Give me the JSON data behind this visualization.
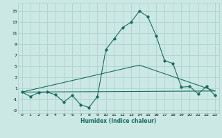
{
  "xlabel": "Humidex (Indice chaleur)",
  "ylabel": "",
  "bg_color": "#cce8e4",
  "line_color": "#1a6b60",
  "grid_color": "#aed4ce",
  "xlim": [
    -0.5,
    23.5
  ],
  "ylim": [
    -3.5,
    16.5
  ],
  "xticks": [
    0,
    1,
    2,
    3,
    4,
    5,
    6,
    7,
    8,
    9,
    10,
    11,
    12,
    13,
    14,
    15,
    16,
    17,
    18,
    19,
    20,
    21,
    22,
    23
  ],
  "yticks": [
    -3,
    -1,
    1,
    3,
    5,
    7,
    9,
    11,
    13,
    15
  ],
  "main_x": [
    0,
    1,
    2,
    3,
    4,
    5,
    6,
    7,
    8,
    9,
    10,
    11,
    12,
    13,
    14,
    15,
    16,
    17,
    18,
    19,
    20,
    21,
    22,
    23
  ],
  "main_y": [
    0.3,
    -0.5,
    0.2,
    0.3,
    -0.2,
    -1.5,
    -0.3,
    -2.0,
    -2.5,
    -0.5,
    8.0,
    10.0,
    12.0,
    13.0,
    15.0,
    14.0,
    10.5,
    6.0,
    5.5,
    1.2,
    1.3,
    0.0,
    1.3,
    -0.3
  ],
  "line2_x": [
    0,
    23
  ],
  "line2_y": [
    0.3,
    0.5
  ],
  "line3_x": [
    0,
    14,
    23
  ],
  "line3_y": [
    0.3,
    5.2,
    0.5
  ]
}
